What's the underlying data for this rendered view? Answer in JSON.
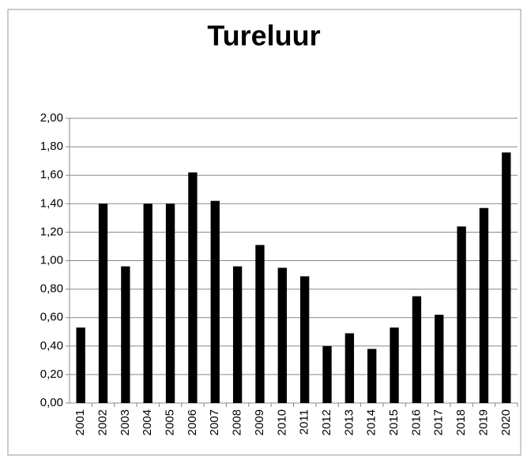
{
  "chart_data": {
    "type": "bar",
    "title": "Tureluur",
    "categories": [
      "2001",
      "2002",
      "2003",
      "2004",
      "2005",
      "2006",
      "2007",
      "2008",
      "2009",
      "2010",
      "2011",
      "2012",
      "2013",
      "2014",
      "2015",
      "2016",
      "2017",
      "2018",
      "2019",
      "2020"
    ],
    "values": [
      0.53,
      1.4,
      0.96,
      1.4,
      1.4,
      1.62,
      1.42,
      0.96,
      1.11,
      0.95,
      0.89,
      0.4,
      0.49,
      0.38,
      0.53,
      0.75,
      0.62,
      1.24,
      1.37,
      1.76
    ],
    "color": "#000000",
    "ylim": [
      0,
      2
    ],
    "yticks": [
      {
        "value": 0,
        "label": "0,00"
      },
      {
        "value": 0.2,
        "label": "0,20"
      },
      {
        "value": 0.4,
        "label": "0,40"
      },
      {
        "value": 0.6,
        "label": "0,60"
      },
      {
        "value": 0.8,
        "label": "0,80"
      },
      {
        "value": 1,
        "label": "1,00"
      },
      {
        "value": 1.2,
        "label": "1,20"
      },
      {
        "value": 1.4,
        "label": "1,40"
      },
      {
        "value": 1.6,
        "label": "1,60"
      },
      {
        "value": 1.8,
        "label": "1,80"
      },
      {
        "value": 2,
        "label": "2,00"
      }
    ],
    "grid": true
  }
}
